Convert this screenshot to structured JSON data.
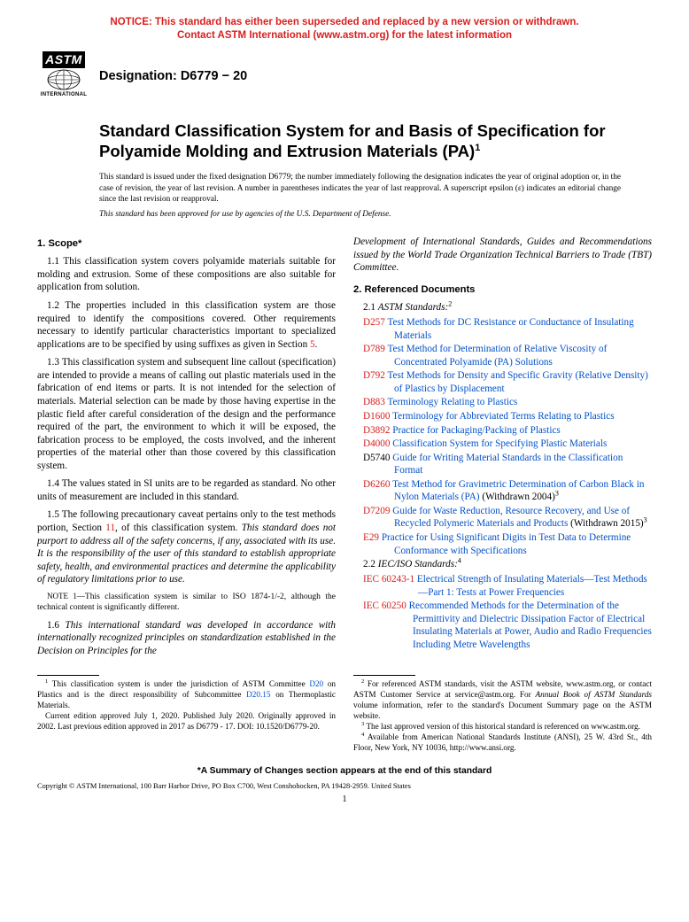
{
  "notice": {
    "line1": "NOTICE: This standard has either been superseded and replaced by a new version or withdrawn.",
    "line2": "Contact ASTM International (www.astm.org) for the latest information",
    "color": "#d8201e"
  },
  "logo": {
    "top": "ASTM",
    "bottom": "INTERNATIONAL"
  },
  "designation": "Designation: D6779 − 20",
  "title": "Standard Classification System for and Basis of Specification for Polyamide Molding and Extrusion Materials (PA)",
  "title_sup": "1",
  "intro1": "This standard is issued under the fixed designation D6779; the number immediately following the designation indicates the year of original adoption or, in the case of revision, the year of last revision. A number in parentheses indicates the year of last reapproval. A superscript epsilon (ε) indicates an editorial change since the last revision or reapproval.",
  "intro2": "This standard has been approved for use by agencies of the U.S. Department of Defense.",
  "sections": {
    "scope": "1. Scope*",
    "refdocs": "2. Referenced Documents"
  },
  "scope": {
    "p11": "1.1 This classification system covers polyamide materials suitable for molding and extrusion. Some of these compositions are also suitable for application from solution.",
    "p12a": "1.2 The properties included in this classification system are those required to identify the compositions covered. Other requirements necessary to identify particular characteristics important to specialized applications are to be specified by using suffixes as given in Section ",
    "p12b": "5",
    "p12c": ".",
    "p13": "1.3 This classification system and subsequent line callout (specification) are intended to provide a means of calling out plastic materials used in the fabrication of end items or parts. It is not intended for the selection of materials. Material selection can be made by those having expertise in the plastic field after careful consideration of the design and the performance required of the part, the environment to which it will be exposed, the fabrication process to be employed, the costs involved, and the inherent properties of the material other than those covered by this classification system.",
    "p14": "1.4 The values stated in SI units are to be regarded as standard. No other units of measurement are included in this standard.",
    "p15a": "1.5 The following precautionary caveat pertains only to the test methods portion, Section ",
    "p15b": "11",
    "p15c": ", of this classification system. ",
    "p15d": "This standard does not purport to address all of the safety concerns, if any, associated with its use. It is the responsibility of the user of this standard to establish appropriate safety, health, and environmental practices and determine the applicability of regulatory limitations prior to use.",
    "note1label": "NOTE 1—",
    "note1": "This classification system is similar to ISO 1874-1/-2, although the technical content is significantly different.",
    "p16a": "1.6 ",
    "p16b": "This international standard was developed in accordance with internationally recognized principles on standardization established in the Decision on Principles for the",
    "p16c": "Development of International Standards, Guides and Recommendations issued by the World Trade Organization Technical Barriers to Trade (TBT) Committee."
  },
  "ref": {
    "h21a": "2.1 ",
    "h21b": "ASTM Standards:",
    "h21sup": "2",
    "h22a": "2.2 ",
    "h22b": "IEC/ISO Standards:",
    "h22sup": "4",
    "items": [
      {
        "code": "D257",
        "text": "Test Methods for DC Resistance or Conductance of Insulating Materials"
      },
      {
        "code": "D789",
        "text": "Test Method for Determination of Relative Viscosity of Concentrated Polyamide (PA) Solutions"
      },
      {
        "code": "D792",
        "text": "Test Methods for Density and Specific Gravity (Relative Density) of Plastics by Displacement"
      },
      {
        "code": "D883",
        "text": "Terminology Relating to Plastics"
      },
      {
        "code": "D1600",
        "text": "Terminology for Abbreviated Terms Relating to Plastics"
      },
      {
        "code": "D3892",
        "text": "Practice for Packaging/Packing of Plastics"
      },
      {
        "code": "D4000",
        "text": "Classification System for Specifying Plastic Materials"
      }
    ],
    "d5740": {
      "code": "D5740",
      "text": "Guide for Writing Material Standards in the Classification Format"
    },
    "d6260": {
      "code": "D6260",
      "text": "Test Method for Gravimetric Determination of Carbon Black in Nylon Materials (PA)",
      "tail": " (Withdrawn 2004)",
      "sup": "3"
    },
    "d7209": {
      "code": "D7209",
      "text": "Guide for Waste Reduction, Resource Recovery, and Use of Recycled Polymeric Materials and Products",
      "tail": " (Withdrawn 2015)",
      "sup": "3"
    },
    "e29": {
      "code": "E29",
      "text": "Practice for Using Significant Digits in Test Data to Determine Conformance with Specifications"
    },
    "iec1": {
      "code": "IEC 60243-1",
      "text": "Electrical Strength of Insulating Materials—Test Methods—Part 1: Tests at Power Frequencies"
    },
    "iec2": {
      "code": "IEC 60250",
      "text": "Recommended Methods for the Determination of the Permittivity and Dielectric Dissipation Factor of Electrical Insulating Materials at Power, Audio and Radio Frequencies Including Metre Wavelengths"
    }
  },
  "footnotes": {
    "f1a": "1",
    "f1b": " This classification system is under the jurisdiction of ASTM Committee ",
    "f1c": "D20",
    "f1d": " on Plastics and is the direct responsibility of Subcommittee ",
    "f1e": "D20.15",
    "f1f": " on Thermoplastic Materials.",
    "f1g": "Current edition approved July 1, 2020. Published July 2020. Originally approved in 2002. Last previous edition approved in 2017 as D6779 - 17. DOI: 10.1520/D6779-20.",
    "f2a": "2",
    "f2b": " For referenced ASTM standards, visit the ASTM website, www.astm.org, or contact ASTM Customer Service at service@astm.org. For ",
    "f2c": "Annual Book of ASTM Standards",
    "f2d": " volume information, refer to the standard's Document Summary page on the ASTM website.",
    "f3a": "3",
    "f3b": " The last approved version of this historical standard is referenced on www.astm.org.",
    "f4a": "4",
    "f4b": " Available from American National Standards Institute (ANSI), 25 W. 43rd St., 4th Floor, New York, NY 10036, http://www.ansi.org."
  },
  "summary": "*A Summary of Changes section appears at the end of this standard",
  "copyright": "Copyright © ASTM International, 100 Barr Harbor Drive, PO Box C700, West Conshohocken, PA 19428-2959. United States",
  "page_num": "1"
}
